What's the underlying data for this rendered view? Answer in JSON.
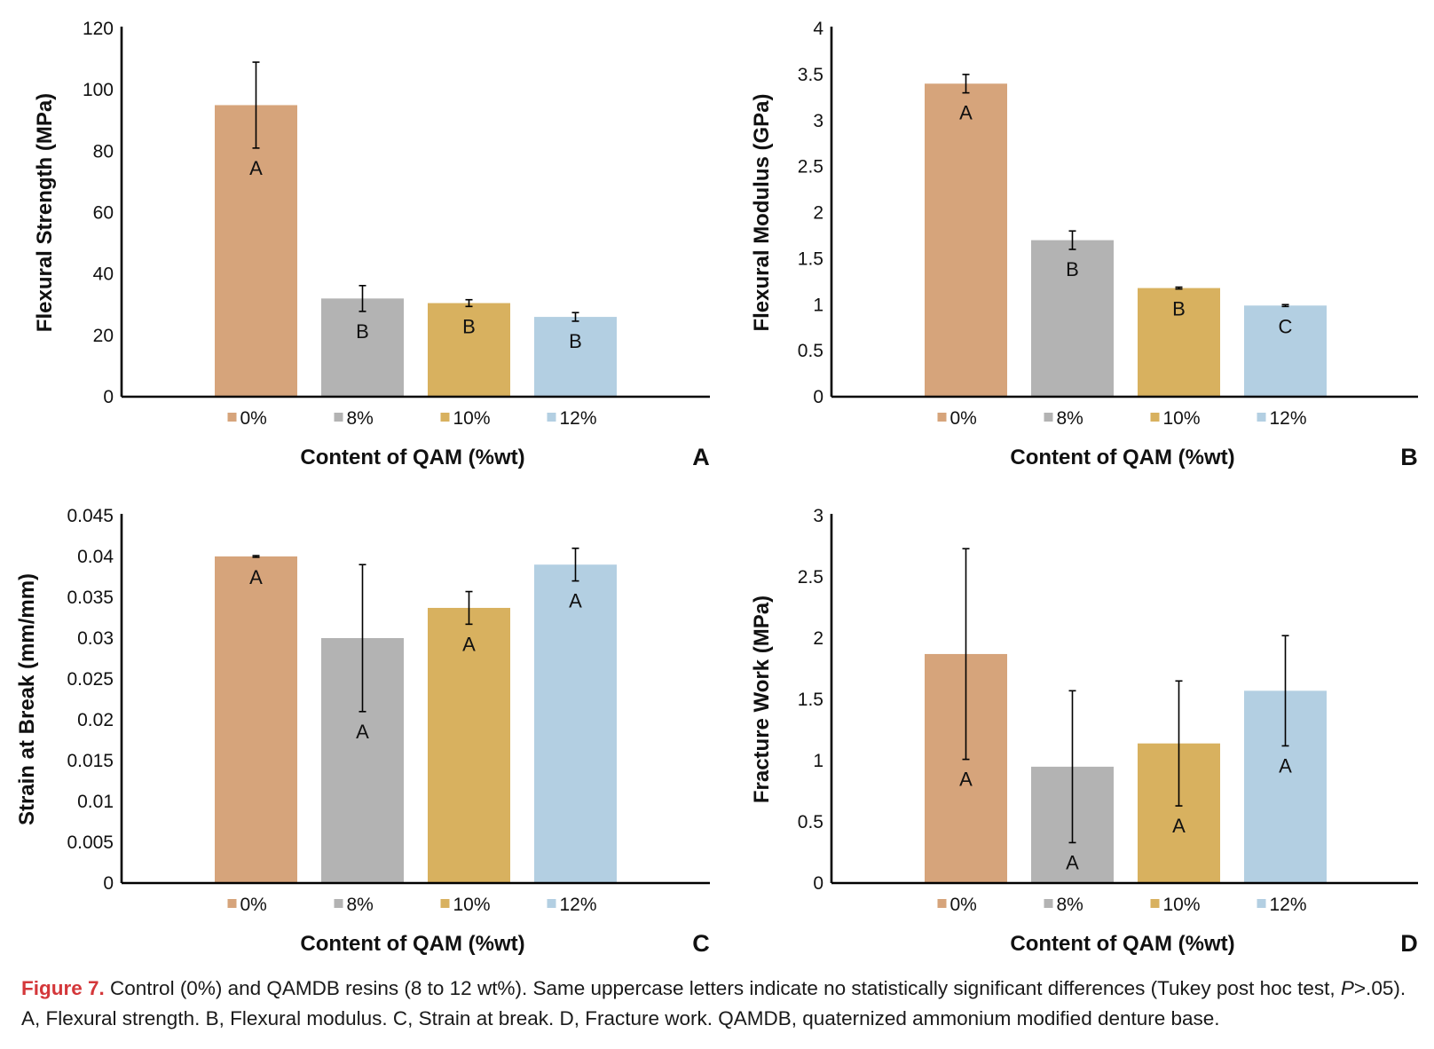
{
  "colors": {
    "0%": "#d6a47b",
    "8%": "#b3b3b3",
    "10%": "#d8b15f",
    "12%": "#b3cfe2",
    "axis": "#000000"
  },
  "chart_data": [
    {
      "panel_label": "A",
      "type": "bar",
      "title": "",
      "xlabel": "Content of QAM (%wt)",
      "ylabel": "Flexural Strength (MPa)",
      "ylim": [
        0,
        120
      ],
      "yticks": [
        "0",
        "20",
        "40",
        "60",
        "80",
        "100",
        "120"
      ],
      "categories": [
        "0%",
        "8%",
        "10%",
        "12%"
      ],
      "values": [
        95,
        32,
        30.5,
        26
      ],
      "errors": [
        14,
        4.2,
        1.1,
        1.4
      ],
      "group_letters": [
        "A",
        "B",
        "B",
        "B"
      ],
      "legend": [
        "0%",
        "8%",
        "10%",
        "12%"
      ]
    },
    {
      "panel_label": "B",
      "type": "bar",
      "title": "",
      "xlabel": "Content of QAM (%wt)",
      "ylabel": "Flexural Modulus (GPa)",
      "ylim": [
        0,
        4
      ],
      "yticks": [
        "0",
        "0.5",
        "1",
        "1.5",
        "2",
        "2.5",
        "3",
        "3.5",
        "4"
      ],
      "categories": [
        "0%",
        "8%",
        "10%",
        "12%"
      ],
      "values": [
        3.4,
        1.7,
        1.18,
        0.99
      ],
      "errors": [
        0.1,
        0.1,
        0.01,
        0.01
      ],
      "group_letters": [
        "A",
        "B",
        "B",
        "C"
      ],
      "legend": [
        "0%",
        "8%",
        "10%",
        "12%"
      ]
    },
    {
      "panel_label": "C",
      "type": "bar",
      "title": "",
      "xlabel": "Content of QAM (%wt)",
      "ylabel": "Strain at Break (mm/mm)",
      "ylim": [
        0,
        0.045
      ],
      "yticks": [
        "0",
        "0.005",
        "0.01",
        "0.015",
        "0.02",
        "0.025",
        "0.03",
        "0.035",
        "0.04",
        "0.045"
      ],
      "categories": [
        "0%",
        "8%",
        "10%",
        "12%"
      ],
      "values": [
        0.04,
        0.03,
        0.0337,
        0.039
      ],
      "errors": [
        0.0001,
        0.009,
        0.002,
        0.002
      ],
      "group_letters": [
        "A",
        "A",
        "A",
        "A"
      ],
      "legend": [
        "0%",
        "8%",
        "10%",
        "12%"
      ]
    },
    {
      "panel_label": "D",
      "type": "bar",
      "title": "",
      "xlabel": "Content of QAM (%wt)",
      "ylabel": "Fracture Work (MPa)",
      "ylim": [
        0,
        3
      ],
      "yticks": [
        "0",
        "0.5",
        "1",
        "1.5",
        "2",
        "2.5",
        "3"
      ],
      "categories": [
        "0%",
        "8%",
        "10%",
        "12%"
      ],
      "values": [
        1.87,
        0.95,
        1.14,
        1.57
      ],
      "errors": [
        0.86,
        0.62,
        0.51,
        0.45
      ],
      "group_letters": [
        "A",
        "A",
        "A",
        "A"
      ],
      "legend": [
        "0%",
        "8%",
        "10%",
        "12%"
      ]
    }
  ],
  "caption": {
    "figure_label": "Figure 7.",
    "text_1": " Control (0%) and QAMDB resins (8 to 12 wt%). Same uppercase letters indicate no statistically significant differences (Tukey post hoc test, ",
    "p_italic": "P",
    "text_2": ">.05). A, Flexural strength. B, Flexural modulus. C, Strain at break. D, Fracture work. QAMDB, quaternized ammonium modified denture base."
  }
}
